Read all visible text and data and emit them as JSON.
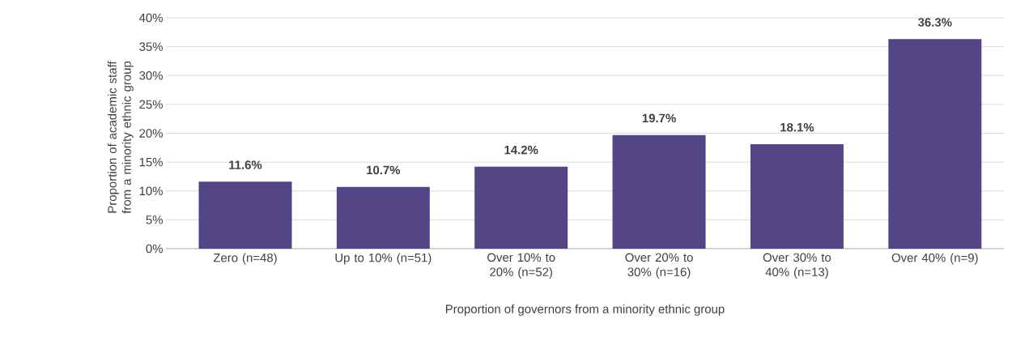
{
  "chart_data": {
    "type": "bar",
    "xlabel": "Proportion of governors from a minority ethnic group",
    "ylabel": "Proportion of academic staff from a minority ethnic group",
    "categories": [
      "Zero (n=48)",
      "Up to 10% (n=51)",
      "Over 10% to 20% (n=52)",
      "Over 20% to 30% (n=16)",
      "Over 30% to 40% (n=13)",
      "Over 40% (n=9)"
    ],
    "values": [
      11.6,
      10.7,
      14.2,
      19.7,
      18.1,
      36.3
    ],
    "value_labels": [
      "11.6%",
      "10.7%",
      "14.2%",
      "19.7%",
      "18.1%",
      "36.3%"
    ],
    "color": "#544686",
    "ylim": [
      0,
      40
    ],
    "yticks": [
      {
        "value": 0,
        "label": "0%"
      },
      {
        "value": 5,
        "label": "5%"
      },
      {
        "value": 10,
        "label": "10%"
      },
      {
        "value": 15,
        "label": "15%"
      },
      {
        "value": 20,
        "label": "20%"
      },
      {
        "value": 25,
        "label": "25%"
      },
      {
        "value": 30,
        "label": "30%"
      },
      {
        "value": 35,
        "label": "35%"
      },
      {
        "value": 40,
        "label": "40%"
      }
    ],
    "grid": "y"
  }
}
